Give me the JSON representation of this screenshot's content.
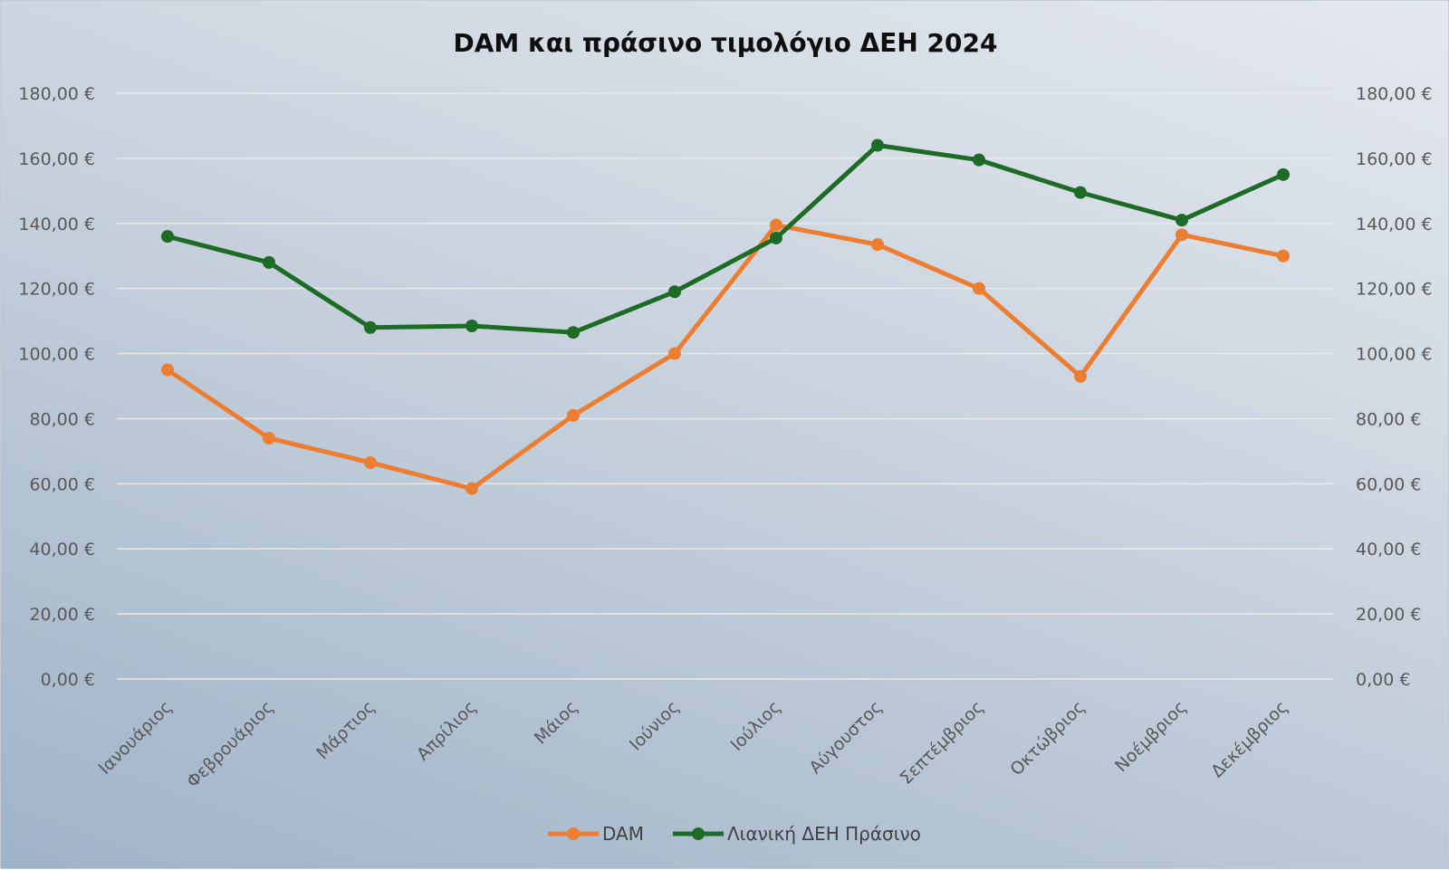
{
  "chart_data": {
    "type": "line",
    "title": "DAM και πράσινο τιμολόγιο ΔΕΗ 2024",
    "categories": [
      "Ιανουάριος",
      "Φεβρουάριος",
      "Μάρτιος",
      "Απρίλιος",
      "Μάιος",
      "Ιούνιος",
      "Ιούλιος",
      "Αύγουστος",
      "Σεπτέμβριος",
      "Οκτώβριος",
      "Νοέμβριος",
      "Δεκέμβριος"
    ],
    "series": [
      {
        "name": "DAM",
        "color": "#ED7D31",
        "values": [
          95.0,
          74.0,
          66.5,
          58.5,
          81.0,
          100.0,
          139.5,
          133.5,
          120.0,
          93.0,
          136.5,
          130.0
        ]
      },
      {
        "name": "Λιανική ΔΕΗ Πράσινο",
        "color": "#1E6B27",
        "values": [
          136.0,
          128.0,
          108.0,
          108.5,
          106.5,
          119.0,
          135.5,
          164.0,
          159.5,
          149.5,
          141.0,
          155.0
        ]
      }
    ],
    "ylim": [
      0,
      180
    ],
    "y_ticks": [
      0,
      20,
      40,
      60,
      80,
      100,
      120,
      140,
      160,
      180
    ],
    "y_tick_labels": [
      "0,00 €",
      "20,00 €",
      "40,00 €",
      "60,00 €",
      "80,00 €",
      "100,00 €",
      "120,00 €",
      "140,00 €",
      "160,00 €",
      "180,00 €"
    ],
    "secondary_y_axis": true,
    "grid": true,
    "legend_position": "bottom"
  }
}
